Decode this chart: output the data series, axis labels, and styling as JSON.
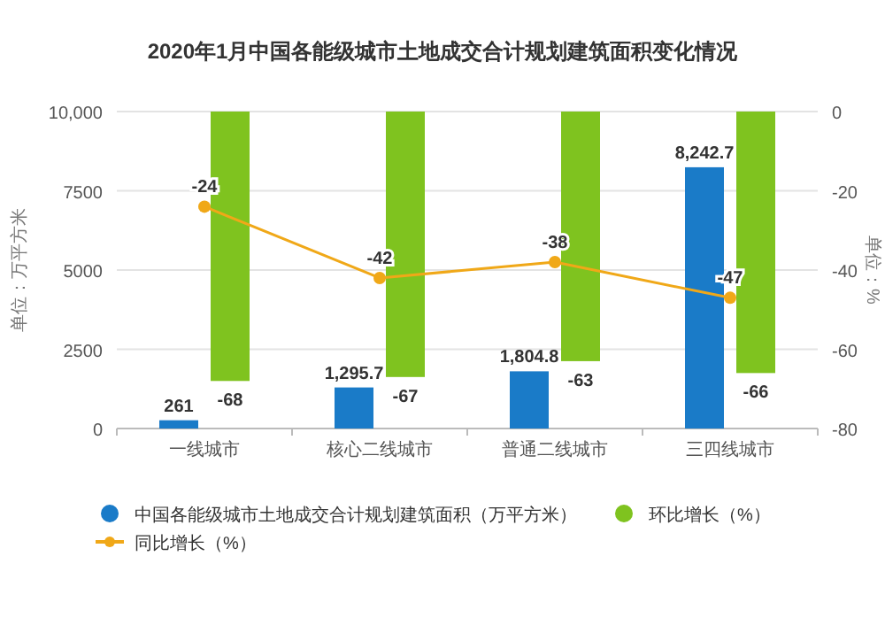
{
  "chart_data": {
    "type": "bar",
    "title": "2020年1月中国各能级城市土地成交合计规划建筑面积变化情况",
    "ylabel": "单位：万平方米",
    "y2label": "单位：%",
    "categories": [
      "一线城市",
      "核心二线城市",
      "普通二线城市",
      "三四线城市"
    ],
    "series": [
      {
        "name": "中国各能级城市土地成交合计规划建筑面积（万平方米）",
        "color": "#1a7bc8",
        "values": [
          261,
          1295.7,
          1804.8,
          8242.7
        ],
        "value_labels": [
          "261",
          "1,295.7",
          "1,804.8",
          "8,242.7"
        ]
      },
      {
        "name": "环比增长（%）",
        "axis": "y2",
        "color": "#7fc31f",
        "values": [
          -68,
          -67,
          -63,
          -66
        ],
        "value_labels": [
          "-68",
          "-67",
          "-63",
          "-66"
        ]
      },
      {
        "name": "同比增长（%）",
        "type": "line",
        "axis": "y2",
        "color": "#f0a818",
        "marker": "circle",
        "values": [
          -24,
          -42,
          -38,
          -47
        ],
        "value_labels": [
          "-24",
          "-42",
          "-38",
          "-47"
        ]
      }
    ],
    "ylim": [
      0,
      10000
    ],
    "yticks": [
      0,
      2500,
      5000,
      7500,
      {
        "value": 10000,
        "label": "10,000"
      }
    ],
    "y2lim": [
      -80,
      0
    ],
    "y2ticks": [
      -80,
      -60,
      -40,
      -20,
      0
    ],
    "grid": "y",
    "legend": "bottom"
  }
}
